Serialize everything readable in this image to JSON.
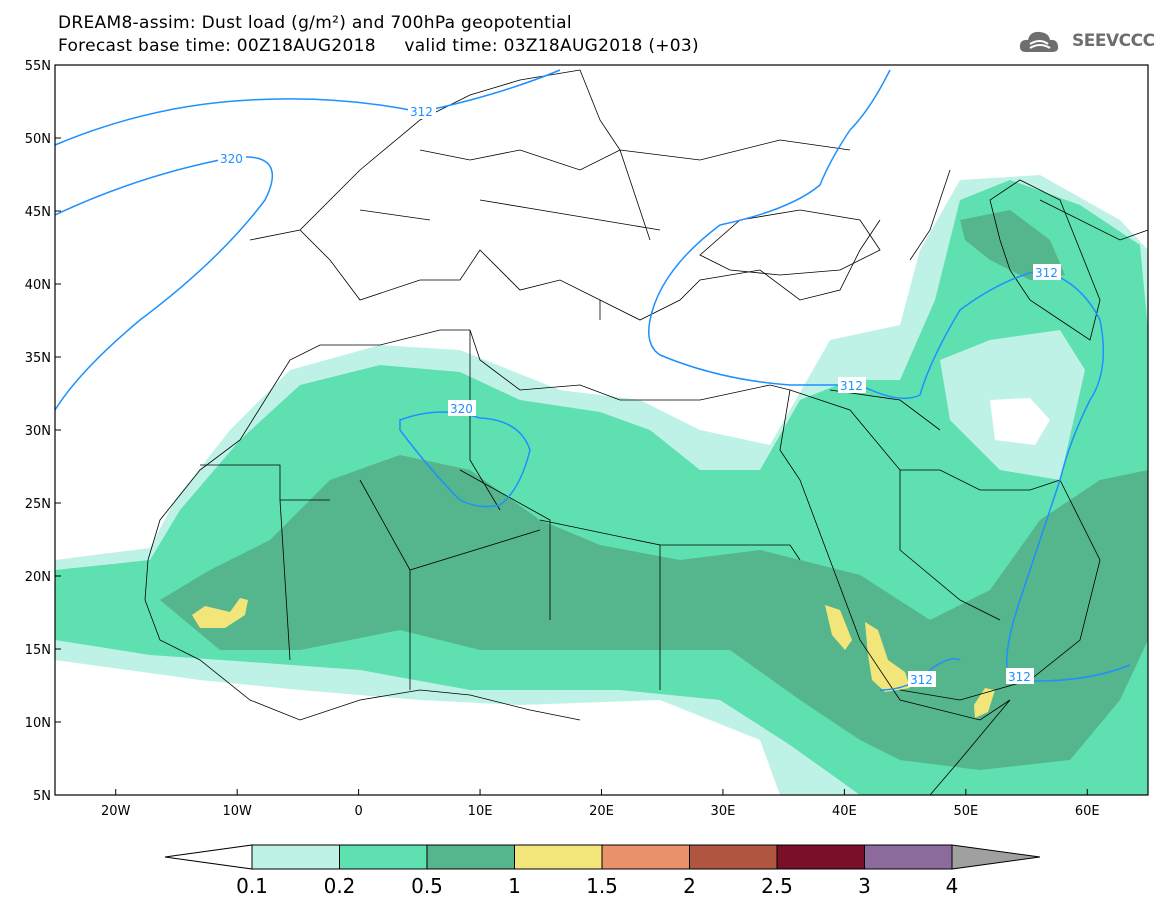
{
  "title": {
    "line1": "DREAM8-assim: Dust load (g/m²) and 700hPa geopotential",
    "line2": "Forecast base time: 00Z18AUG2018     valid time: 03Z18AUG2018 (+03)"
  },
  "logo": {
    "text": "SEEVCCC",
    "icon": "cloud-icon"
  },
  "map": {
    "lon_range": [
      -25,
      65
    ],
    "lat_range": [
      5,
      55
    ],
    "lat_ticks": [
      "55N",
      "50N",
      "45N",
      "40N",
      "35N",
      "30N",
      "25N",
      "20N",
      "15N",
      "10N",
      "5N"
    ],
    "lon_ticks": [
      "20W",
      "10W",
      "0",
      "10E",
      "20E",
      "30E",
      "40E",
      "50E",
      "60E"
    ],
    "contour_color": "#1e90ff",
    "contour_labels": [
      "312",
      "320",
      "320",
      "312",
      "312",
      "312",
      "312"
    ]
  },
  "colorbar": {
    "levels": [
      "0.1",
      "0.2",
      "0.5",
      "1",
      "1.5",
      "2",
      "2.5",
      "3",
      "4"
    ],
    "colors": [
      "#bff2e6",
      "#5fe0b0",
      "#55b58c",
      "#f2e67a",
      "#e8916a",
      "#b0553f",
      "#7a0f2a",
      "#8c6b9c",
      "#a0a0a0"
    ]
  }
}
